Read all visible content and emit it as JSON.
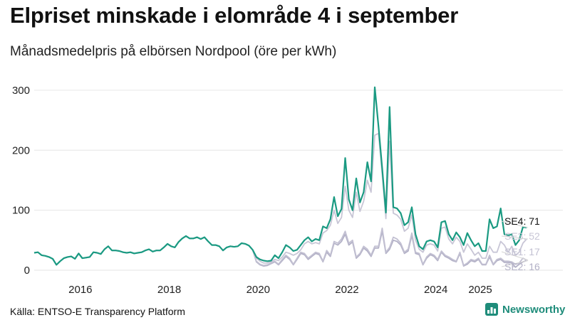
{
  "title": "Elpriset minskade i elområde 4 i september",
  "subtitle": "Månadsmedelpris på elbörsen Nordpool (öre per kWh)",
  "source": "Källa: ENTSO-E Transparency Platform",
  "brand": {
    "name": "Newsworthy",
    "icon": "bar-chart-icon"
  },
  "colors": {
    "SE4": "#1a9a82",
    "SE3": "#c8c6d6",
    "SE1": "#c2c0d2",
    "SE2": "#b2b0c6",
    "grid": "#e6e6e6",
    "brand": "#1e8c7a"
  },
  "chart_data": {
    "type": "line",
    "title": "Elpriset minskade i elområde 4 i september",
    "xlabel": "",
    "ylabel": "öre per kWh",
    "ylim": [
      0,
      320
    ],
    "xlim": [
      2015.0,
      2026.9
    ],
    "yticks": [
      0,
      100,
      200,
      300
    ],
    "xticks": [
      2016,
      2018,
      2020,
      2022,
      2024,
      2025
    ],
    "grid": true,
    "x_start": 2015.0,
    "x_step": 0.08333,
    "series": [
      {
        "name": "SE4",
        "end_label": "SE4: 71",
        "last_value": 71,
        "values": [
          29,
          30,
          25,
          24,
          22,
          19,
          9,
          15,
          20,
          22,
          23,
          19,
          28,
          20,
          21,
          22,
          30,
          29,
          27,
          35,
          40,
          33,
          33,
          32,
          30,
          29,
          30,
          28,
          29,
          30,
          33,
          35,
          31,
          33,
          33,
          38,
          44,
          40,
          38,
          47,
          53,
          57,
          53,
          53,
          55,
          52,
          55,
          48,
          42,
          42,
          40,
          33,
          38,
          40,
          39,
          40,
          45,
          44,
          41,
          34,
          22,
          18,
          16,
          15,
          16,
          25,
          20,
          30,
          42,
          38,
          32,
          34,
          42,
          50,
          55,
          48,
          52,
          50,
          73,
          70,
          85,
          122,
          90,
          102,
          187,
          118,
          100,
          153,
          113,
          130,
          180,
          148,
          305,
          240,
          170,
          96,
          272,
          105,
          103,
          95,
          75,
          80,
          105,
          60,
          40,
          35,
          48,
          50,
          48,
          38,
          80,
          82,
          60,
          50,
          63,
          55,
          42,
          62,
          50,
          40,
          45,
          32,
          32,
          85,
          70,
          73,
          103,
          60,
          58,
          60,
          42,
          50,
          72,
          71
        ]
      },
      {
        "name": "SE3",
        "end_label": "SE3: 52",
        "last_value": 52,
        "values": [
          29,
          30,
          25,
          24,
          22,
          19,
          9,
          15,
          20,
          22,
          23,
          19,
          28,
          20,
          21,
          22,
          30,
          29,
          27,
          35,
          40,
          33,
          33,
          32,
          30,
          29,
          30,
          28,
          29,
          30,
          33,
          35,
          31,
          33,
          33,
          38,
          44,
          40,
          38,
          47,
          53,
          57,
          53,
          53,
          55,
          52,
          55,
          48,
          42,
          42,
          40,
          33,
          38,
          40,
          39,
          40,
          45,
          44,
          41,
          34,
          20,
          15,
          12,
          12,
          14,
          18,
          16,
          22,
          30,
          28,
          25,
          28,
          34,
          44,
          48,
          44,
          46,
          44,
          62,
          66,
          75,
          100,
          78,
          88,
          140,
          100,
          88,
          130,
          98,
          115,
          150,
          130,
          225,
          228,
          160,
          86,
          215,
          95,
          92,
          85,
          65,
          70,
          92,
          50,
          35,
          30,
          42,
          44,
          42,
          32,
          70,
          72,
          52,
          44,
          55,
          48,
          30,
          44,
          35,
          25,
          30,
          20,
          20,
          40,
          30,
          30,
          48,
          42,
          30,
          40,
          25,
          30,
          45,
          52
        ]
      },
      {
        "name": "SE1",
        "end_label": "SE1: 17",
        "last_value": 17,
        "values": [
          29,
          30,
          25,
          24,
          22,
          19,
          9,
          15,
          20,
          22,
          23,
          19,
          28,
          20,
          21,
          22,
          30,
          29,
          27,
          35,
          40,
          33,
          33,
          32,
          30,
          29,
          30,
          28,
          29,
          30,
          33,
          35,
          31,
          33,
          33,
          38,
          44,
          40,
          38,
          47,
          53,
          57,
          53,
          53,
          55,
          52,
          55,
          48,
          42,
          42,
          40,
          33,
          38,
          40,
          39,
          40,
          45,
          44,
          41,
          34,
          15,
          10,
          8,
          9,
          12,
          15,
          10,
          18,
          25,
          20,
          10,
          20,
          30,
          28,
          20,
          25,
          30,
          28,
          15,
          33,
          25,
          48,
          45,
          52,
          65,
          45,
          50,
          22,
          28,
          40,
          35,
          25,
          40,
          40,
          70,
          30,
          38,
          55,
          52,
          45,
          30,
          35,
          62,
          30,
          28,
          10,
          22,
          28,
          25,
          18,
          32,
          25,
          22,
          18,
          15,
          30,
          8,
          12,
          18,
          16,
          20,
          10,
          10,
          25,
          10,
          18,
          20,
          15,
          15,
          14,
          10,
          12,
          20,
          17
        ]
      },
      {
        "name": "SE2",
        "end_label": "SE2: 16",
        "last_value": 16,
        "values": [
          29,
          30,
          25,
          24,
          22,
          19,
          9,
          15,
          20,
          22,
          23,
          19,
          28,
          20,
          21,
          22,
          30,
          29,
          27,
          35,
          40,
          33,
          33,
          32,
          30,
          29,
          30,
          28,
          29,
          30,
          33,
          35,
          31,
          33,
          33,
          38,
          44,
          40,
          38,
          47,
          53,
          57,
          53,
          53,
          55,
          52,
          55,
          48,
          42,
          42,
          40,
          33,
          38,
          40,
          39,
          40,
          45,
          44,
          41,
          34,
          14,
          9,
          7,
          8,
          11,
          14,
          9,
          16,
          23,
          18,
          9,
          18,
          28,
          26,
          18,
          23,
          28,
          26,
          14,
          30,
          23,
          45,
          42,
          48,
          60,
          42,
          47,
          20,
          26,
          37,
          32,
          23,
          37,
          37,
          65,
          28,
          35,
          50,
          48,
          42,
          28,
          32,
          58,
          28,
          26,
          9,
          20,
          26,
          23,
          16,
          30,
          23,
          20,
          16,
          14,
          28,
          7,
          10,
          16,
          14,
          18,
          9,
          9,
          22,
          9,
          16,
          18,
          13,
          13,
          12,
          5,
          10,
          14,
          16
        ]
      }
    ]
  }
}
